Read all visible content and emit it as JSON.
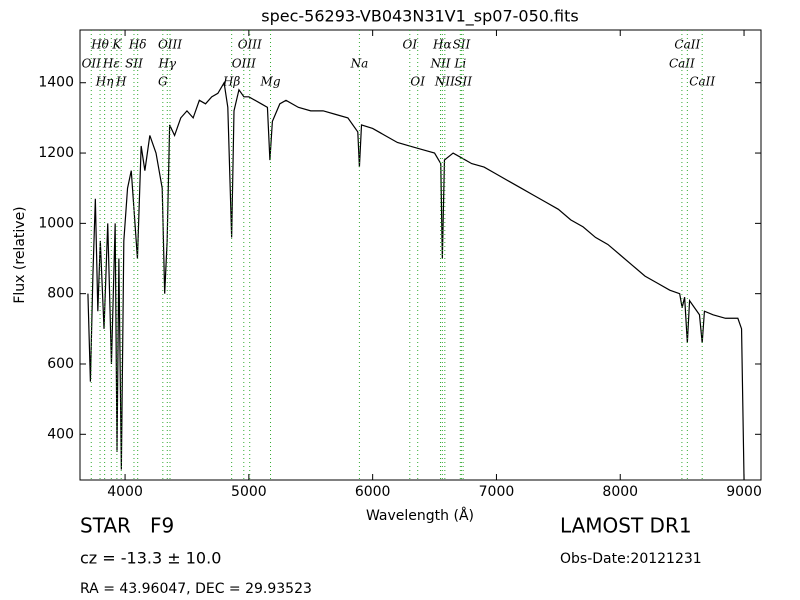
{
  "chart_data": {
    "type": "line",
    "title": "spec-56293-VB043N31V1_sp07-050.fits",
    "x_label": "Wavelength (Å)",
    "y_label": "Flux (relative)",
    "xlim": [
      3636,
      9137
    ],
    "ylim": [
      270,
      1550
    ],
    "xticks": [
      4000,
      5000,
      6000,
      7000,
      8000,
      9000
    ],
    "yticks": [
      400,
      600,
      800,
      1000,
      1200,
      1400
    ],
    "color": "#000000",
    "line_color": "#33aa33",
    "x": [
      3700,
      3720,
      3740,
      3760,
      3780,
      3800,
      3830,
      3860,
      3890,
      3920,
      3935,
      3950,
      3970,
      3990,
      4020,
      4050,
      4070,
      4100,
      4130,
      4160,
      4200,
      4250,
      4300,
      4320,
      4340,
      4360,
      4400,
      4450,
      4500,
      4550,
      4600,
      4650,
      4700,
      4750,
      4800,
      4830,
      4861,
      4880,
      4920,
      4960,
      5000,
      5100,
      5150,
      5170,
      5190,
      5250,
      5300,
      5400,
      5500,
      5600,
      5700,
      5800,
      5880,
      5893,
      5910,
      6000,
      6100,
      6200,
      6300,
      6400,
      6500,
      6550,
      6563,
      6580,
      6650,
      6700,
      6800,
      6900,
      7000,
      7100,
      7200,
      7300,
      7400,
      7500,
      7600,
      7700,
      7800,
      7900,
      8000,
      8100,
      8200,
      8300,
      8400,
      8480,
      8500,
      8520,
      8542,
      8560,
      8600,
      8640,
      8662,
      8680,
      8750,
      8850,
      8950,
      8980,
      9000
    ],
    "values": [
      800,
      550,
      850,
      1070,
      750,
      950,
      700,
      1000,
      600,
      1000,
      350,
      900,
      300,
      950,
      1100,
      1150,
      1050,
      900,
      1220,
      1150,
      1250,
      1200,
      1100,
      800,
      950,
      1280,
      1250,
      1300,
      1320,
      1300,
      1350,
      1340,
      1360,
      1370,
      1400,
      1330,
      960,
      1320,
      1380,
      1360,
      1360,
      1340,
      1330,
      1180,
      1290,
      1340,
      1350,
      1330,
      1320,
      1320,
      1310,
      1300,
      1260,
      1160,
      1280,
      1270,
      1250,
      1230,
      1220,
      1210,
      1200,
      1170,
      900,
      1180,
      1200,
      1190,
      1170,
      1160,
      1140,
      1120,
      1100,
      1080,
      1060,
      1040,
      1010,
      990,
      960,
      940,
      910,
      880,
      850,
      830,
      810,
      800,
      760,
      790,
      660,
      780,
      760,
      740,
      660,
      750,
      740,
      730,
      730,
      700,
      270
    ],
    "lines": [
      {
        "wavelength": 3727,
        "label": "OII"
      },
      {
        "wavelength": 3798,
        "label": "Hθ"
      },
      {
        "wavelength": 3835,
        "label": "Hη"
      },
      {
        "wavelength": 3889,
        "label": "Hε"
      },
      {
        "wavelength": 3934,
        "label": "K"
      },
      {
        "wavelength": 3969,
        "label": "H"
      },
      {
        "wavelength": 4072,
        "label": "SII"
      },
      {
        "wavelength": 4102,
        "label": "Hδ"
      },
      {
        "wavelength": 4305,
        "label": "G"
      },
      {
        "wavelength": 4341,
        "label": "Hγ"
      },
      {
        "wavelength": 4363,
        "label": "OIII"
      },
      {
        "wavelength": 4861,
        "label": "Hβ"
      },
      {
        "wavelength": 4959,
        "label": "OIII"
      },
      {
        "wavelength": 5007,
        "label": "OIII"
      },
      {
        "wavelength": 5175,
        "label": "Mg"
      },
      {
        "wavelength": 5893,
        "label": "Na"
      },
      {
        "wavelength": 6300,
        "label": "OI"
      },
      {
        "wavelength": 6364,
        "label": "OI"
      },
      {
        "wavelength": 6548,
        "label": "NII"
      },
      {
        "wavelength": 6563,
        "label": "Hα"
      },
      {
        "wavelength": 6583,
        "label": "NII"
      },
      {
        "wavelength": 6708,
        "label": "Li"
      },
      {
        "wavelength": 6717,
        "label": "SII"
      },
      {
        "wavelength": 6731,
        "label": "SII"
      },
      {
        "wavelength": 8498,
        "label": "CaII"
      },
      {
        "wavelength": 8542,
        "label": "CaII"
      },
      {
        "wavelength": 8662,
        "label": "CaII"
      }
    ],
    "object_class": "STAR   F9",
    "redshift": "cz = -13.3 ± 10.0",
    "coordinates": "RA = 43.96047, DEC = 29.93523",
    "release": "LAMOST DR1",
    "obs_date": "Obs-Date:20121231"
  }
}
